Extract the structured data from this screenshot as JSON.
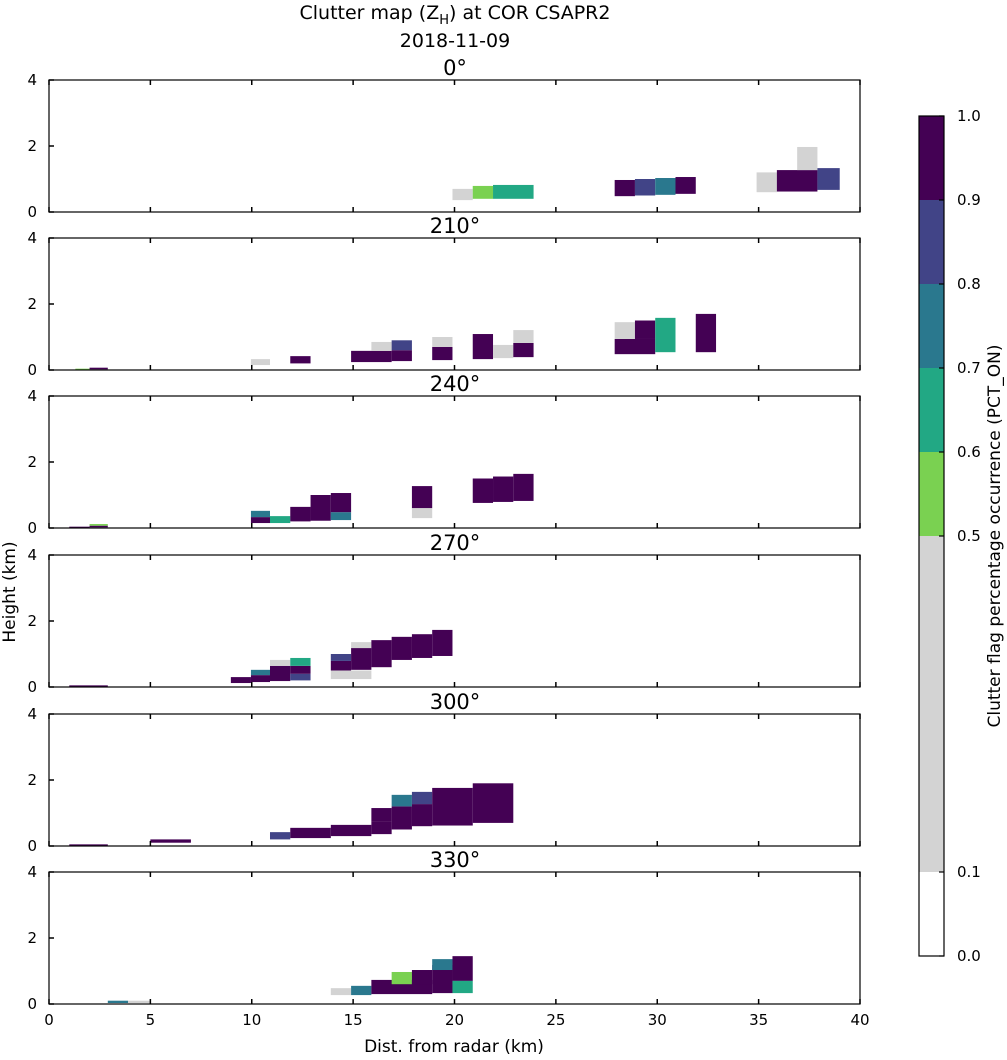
{
  "chart_data": [
    {
      "type": "heatmap",
      "title_main": "Clutter map (Z",
      "title_sub": "H",
      "title_tail": ") at COR CSAPR2",
      "date": "2018-11-09",
      "xlabel": "Dist. from radar (km)",
      "ylabel": "Height (km)",
      "xlim": [
        0,
        40
      ],
      "ylim": [
        0,
        4
      ],
      "xticks": [
        "0",
        "5",
        "10",
        "15",
        "20",
        "25",
        "30",
        "35",
        "40"
      ],
      "yticks": [
        "0",
        "2",
        "4"
      ],
      "colorbar": {
        "label": "Clutter flag percentage occurrence (PCT_ON)",
        "bounds": [
          0.0,
          0.1,
          0.5,
          0.6,
          0.7,
          0.8,
          0.9,
          1.0
        ],
        "tick_labels": [
          "0.0",
          "0.1",
          "0.5",
          "0.6",
          "0.7",
          "0.8",
          "0.9",
          "1.0"
        ],
        "colors": [
          "#ffffff",
          "#d3d3d3",
          "#7ad151",
          "#22a884",
          "#2a788e",
          "#414487",
          "#440154"
        ]
      },
      "panels": [
        {
          "title": "0°",
          "cells": [
            [
              19.9,
              20.9,
              0.36,
              0.7,
              0.3
            ],
            [
              20.9,
              21.9,
              0.4,
              0.79,
              0.55
            ],
            [
              21.9,
              23.9,
              0.4,
              0.82,
              0.65
            ],
            [
              27.9,
              28.9,
              0.48,
              0.97,
              0.95
            ],
            [
              28.9,
              29.9,
              0.5,
              1.0,
              0.85
            ],
            [
              29.9,
              30.9,
              0.52,
              1.03,
              0.75
            ],
            [
              30.9,
              31.9,
              0.55,
              1.06,
              0.95
            ],
            [
              34.9,
              35.9,
              0.6,
              1.2,
              0.3
            ],
            [
              35.9,
              37.9,
              0.62,
              1.27,
              0.95
            ],
            [
              36.9,
              37.9,
              1.27,
              1.97,
              0.3
            ],
            [
              37.9,
              39.0,
              0.67,
              1.33,
              0.85
            ]
          ]
        },
        {
          "title": "210°",
          "cells": [
            [
              1.3,
              2.0,
              0.0,
              0.04,
              0.55
            ],
            [
              2.0,
              2.9,
              0.02,
              0.07,
              0.95
            ],
            [
              9.96,
              10.9,
              0.15,
              0.33,
              0.3
            ],
            [
              11.9,
              12.9,
              0.2,
              0.42,
              0.95
            ],
            [
              14.9,
              16.9,
              0.24,
              0.58,
              0.95
            ],
            [
              15.9,
              16.9,
              0.58,
              0.85,
              0.3
            ],
            [
              16.9,
              17.9,
              0.27,
              0.6,
              0.95
            ],
            [
              16.9,
              17.9,
              0.6,
              0.9,
              0.85
            ],
            [
              18.9,
              19.9,
              0.3,
              0.7,
              0.95
            ],
            [
              18.9,
              19.9,
              0.7,
              1.0,
              0.3
            ],
            [
              20.9,
              21.9,
              0.33,
              1.09,
              0.95
            ],
            [
              21.9,
              22.9,
              0.36,
              0.76,
              0.3
            ],
            [
              22.9,
              23.9,
              0.39,
              0.82,
              0.95
            ],
            [
              22.9,
              23.9,
              0.82,
              1.21,
              0.3
            ],
            [
              27.9,
              29.9,
              0.48,
              0.94,
              0.95
            ],
            [
              27.9,
              28.9,
              0.94,
              1.45,
              0.3
            ],
            [
              28.9,
              29.9,
              0.94,
              1.5,
              0.95
            ],
            [
              29.9,
              30.9,
              0.54,
              1.58,
              0.65
            ],
            [
              31.9,
              32.9,
              0.54,
              1.7,
              0.95
            ]
          ]
        },
        {
          "title": "240°",
          "cells": [
            [
              1.0,
              2.0,
              0.0,
              0.04,
              0.95
            ],
            [
              2.0,
              2.9,
              0.02,
              0.07,
              0.95
            ],
            [
              2.0,
              2.9,
              0.07,
              0.12,
              0.55
            ],
            [
              9.96,
              10.9,
              0.15,
              0.33,
              0.95
            ],
            [
              9.96,
              10.9,
              0.33,
              0.52,
              0.75
            ],
            [
              10.9,
              11.9,
              0.15,
              0.36,
              0.65
            ],
            [
              11.9,
              12.9,
              0.2,
              0.64,
              0.95
            ],
            [
              12.9,
              13.9,
              0.22,
              1.0,
              0.95
            ],
            [
              13.9,
              14.9,
              0.24,
              0.48,
              0.75
            ],
            [
              13.9,
              14.9,
              0.48,
              1.06,
              0.95
            ],
            [
              17.9,
              18.9,
              0.6,
              1.27,
              0.95
            ],
            [
              17.9,
              18.9,
              0.3,
              0.6,
              0.3
            ],
            [
              20.9,
              21.9,
              0.76,
              1.5,
              0.95
            ],
            [
              21.9,
              22.9,
              0.79,
              1.56,
              0.95
            ],
            [
              22.9,
              23.9,
              0.82,
              1.64,
              0.95
            ]
          ]
        },
        {
          "title": "270°",
          "cells": [
            [
              1.0,
              2.9,
              0.0,
              0.05,
              0.95
            ],
            [
              8.97,
              9.96,
              0.12,
              0.3,
              0.95
            ],
            [
              9.96,
              10.9,
              0.15,
              0.36,
              0.95
            ],
            [
              9.96,
              10.9,
              0.36,
              0.52,
              0.75
            ],
            [
              10.9,
              11.9,
              0.18,
              0.64,
              0.95
            ],
            [
              10.9,
              11.9,
              0.64,
              0.82,
              0.3
            ],
            [
              11.9,
              12.9,
              0.2,
              0.4,
              0.85
            ],
            [
              11.9,
              12.9,
              0.4,
              0.64,
              0.95
            ],
            [
              11.9,
              12.9,
              0.64,
              0.88,
              0.65
            ],
            [
              13.9,
              15.9,
              0.24,
              0.5,
              0.3
            ],
            [
              13.9,
              14.9,
              0.5,
              0.79,
              0.95
            ],
            [
              13.9,
              14.9,
              0.79,
              1.0,
              0.85
            ],
            [
              14.9,
              15.9,
              0.52,
              1.18,
              0.95
            ],
            [
              14.9,
              15.9,
              1.18,
              1.36,
              0.3
            ],
            [
              15.9,
              16.9,
              0.6,
              1.42,
              0.95
            ],
            [
              16.9,
              17.9,
              0.82,
              1.52,
              0.95
            ],
            [
              17.9,
              18.9,
              0.88,
              1.6,
              0.95
            ],
            [
              18.9,
              19.9,
              0.94,
              1.73,
              0.95
            ]
          ]
        },
        {
          "title": "300°",
          "cells": [
            [
              1.0,
              2.9,
              0.0,
              0.05,
              0.95
            ],
            [
              5.0,
              7.0,
              0.1,
              0.2,
              0.95
            ],
            [
              10.9,
              11.9,
              0.2,
              0.42,
              0.85
            ],
            [
              11.9,
              13.9,
              0.24,
              0.55,
              0.95
            ],
            [
              13.9,
              15.9,
              0.3,
              0.64,
              0.95
            ],
            [
              15.9,
              16.9,
              0.36,
              0.73,
              0.95
            ],
            [
              15.9,
              16.9,
              0.73,
              1.15,
              0.95
            ],
            [
              16.9,
              17.9,
              0.5,
              1.2,
              0.95
            ],
            [
              16.9,
              17.9,
              1.2,
              1.55,
              0.75
            ],
            [
              17.9,
              18.9,
              0.6,
              1.27,
              0.95
            ],
            [
              17.9,
              18.9,
              1.27,
              1.64,
              0.85
            ],
            [
              18.9,
              20.9,
              0.62,
              1.76,
              0.95
            ],
            [
              20.9,
              22.9,
              0.7,
              1.9,
              0.95
            ]
          ]
        },
        {
          "title": "330°",
          "cells": [
            [
              2.9,
              3.9,
              0.03,
              0.1,
              0.75
            ],
            [
              3.9,
              5.0,
              0.03,
              0.1,
              0.3
            ],
            [
              13.9,
              14.9,
              0.27,
              0.48,
              0.3
            ],
            [
              14.9,
              15.9,
              0.27,
              0.55,
              0.75
            ],
            [
              15.9,
              18.9,
              0.3,
              0.73,
              0.95
            ],
            [
              16.9,
              17.9,
              0.6,
              0.97,
              0.55
            ],
            [
              17.9,
              18.9,
              0.6,
              1.03,
              0.95
            ],
            [
              18.9,
              19.9,
              0.33,
              1.18,
              0.95
            ],
            [
              18.9,
              19.9,
              1.03,
              1.36,
              0.75
            ],
            [
              19.9,
              20.9,
              0.7,
              1.45,
              0.95
            ],
            [
              19.9,
              20.9,
              0.33,
              0.7,
              0.65
            ]
          ]
        }
      ]
    }
  ]
}
